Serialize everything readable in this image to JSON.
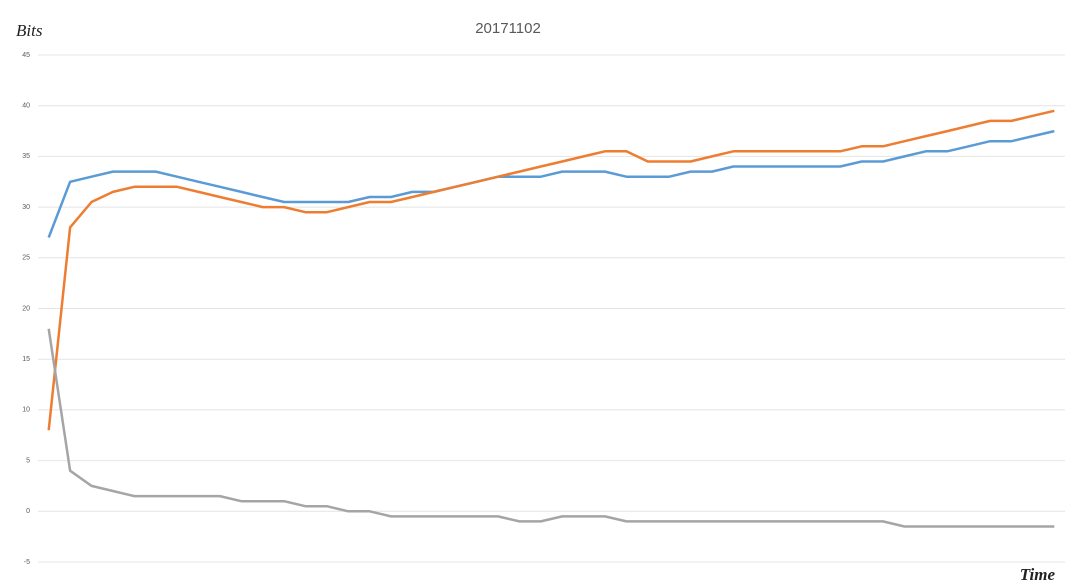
{
  "chart_data": {
    "type": "line",
    "title": "20171102",
    "y_label": "Bits",
    "x_label": "Time",
    "categories": [
      null,
      null,
      null,
      null,
      null,
      null,
      null,
      null,
      null,
      null,
      null,
      null,
      null,
      null,
      null,
      null,
      null,
      null,
      null,
      null,
      null,
      null,
      null,
      null,
      null,
      null,
      null,
      null,
      null,
      null,
      null,
      null,
      null,
      null,
      null,
      null,
      null,
      null,
      null,
      null,
      null,
      null,
      null,
      null,
      null,
      null,
      null,
      null
    ],
    "series": [
      {
        "color": "#5b9bd5",
        "values": [
          27,
          32.5,
          33,
          33.5,
          33.5,
          33.5,
          33,
          32.5,
          32,
          31.5,
          31,
          30.5,
          30.5,
          30.5,
          30.5,
          31,
          31,
          31.5,
          31.5,
          32,
          32.5,
          33,
          33,
          33,
          33.5,
          33.5,
          33.5,
          33,
          33,
          33,
          33.5,
          33.5,
          34,
          34,
          34,
          34,
          34,
          34,
          34.5,
          34.5,
          35,
          35.5,
          35.5,
          36,
          36.5,
          36.5,
          37,
          37.5
        ]
      },
      {
        "color": "#ed7d31",
        "values": [
          8,
          28,
          30.5,
          31.5,
          32,
          32,
          32,
          31.5,
          31,
          30.5,
          30,
          30,
          29.5,
          29.5,
          30,
          30.5,
          30.5,
          31,
          31.5,
          32,
          32.5,
          33,
          33.5,
          34,
          34.5,
          35,
          35.5,
          35.5,
          34.5,
          34.5,
          34.5,
          35,
          35.5,
          35.5,
          35.5,
          35.5,
          35.5,
          35.5,
          36,
          36,
          36.5,
          37,
          37.5,
          38,
          38.5,
          38.5,
          39,
          39.5
        ]
      },
      {
        "color": "#a5a5a5",
        "values": [
          18,
          4,
          2.5,
          2,
          1.5,
          1.5,
          1.5,
          1.5,
          1.5,
          1,
          1,
          1,
          0.5,
          0.5,
          0,
          0,
          -0.5,
          -0.5,
          -0.5,
          -0.5,
          -0.5,
          -0.5,
          -1,
          -1,
          -0.5,
          -0.5,
          -0.5,
          -1,
          -1,
          -1,
          -1,
          -1,
          -1,
          -1,
          -1,
          -1,
          -1,
          -1,
          -1,
          -1,
          -1.5,
          -1.5,
          -1.5,
          -1.5,
          -1.5,
          -1.5,
          -1.5,
          -1.5
        ]
      }
    ],
    "ylim": [
      -5,
      45
    ],
    "yticks": [
      -5,
      0,
      5,
      10,
      15,
      20,
      25,
      30,
      35,
      40,
      45
    ],
    "grid": true
  }
}
